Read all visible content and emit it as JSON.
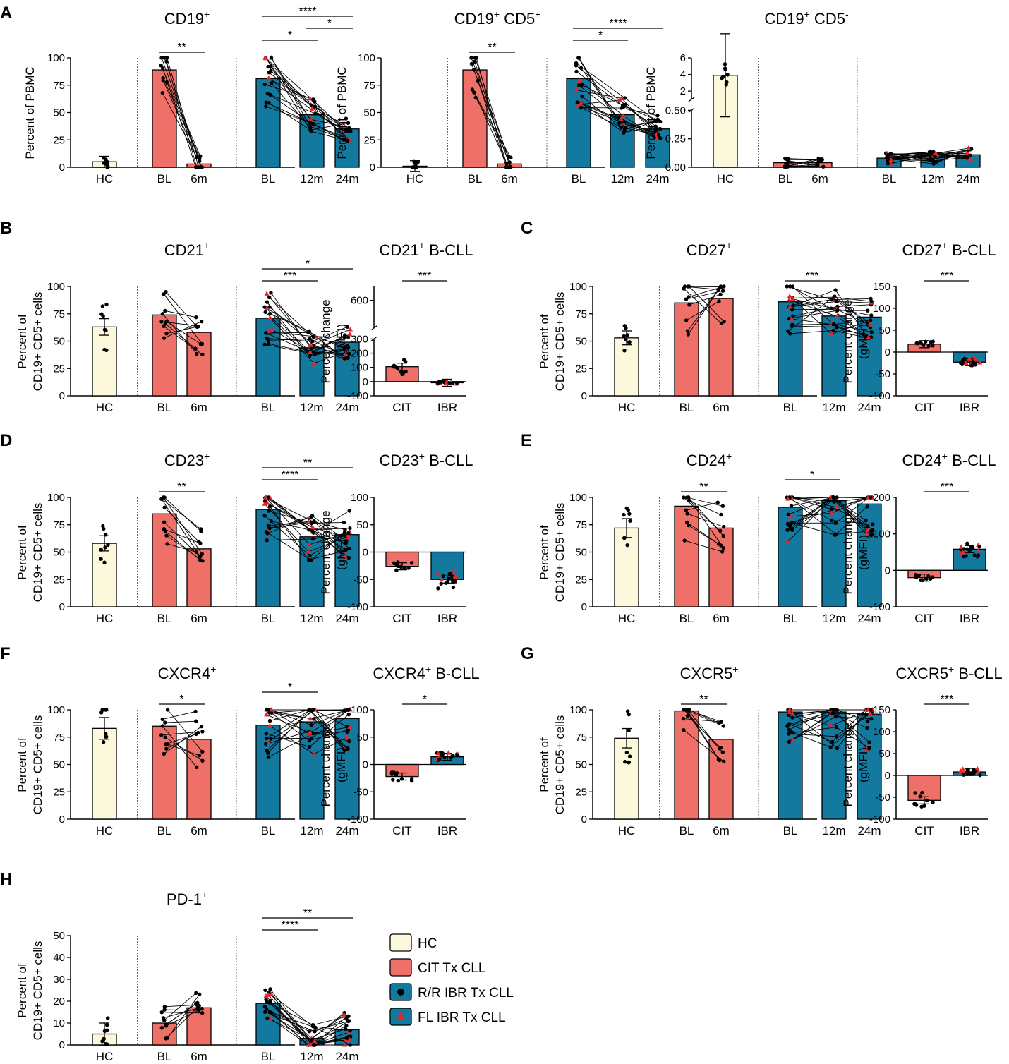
{
  "colors": {
    "hc": "#fbf8dc",
    "cit": "#ef6f69",
    "ibr": "#13799f",
    "fl_marker": "#e8262a",
    "rr_marker": "#000000"
  },
  "groups": {
    "hc": "HC",
    "bl": "BL",
    "m6": "6m",
    "m12": "12m",
    "m24": "24m",
    "cit": "CIT",
    "ibr": "IBR"
  },
  "legend": [
    {
      "label": "HC",
      "swatch": "hc",
      "marker": "none"
    },
    {
      "label": "CIT Tx CLL",
      "swatch": "cit",
      "marker": "none"
    },
    {
      "label": "R/R IBR Tx CLL",
      "swatch": "ibr",
      "marker": "circle"
    },
    {
      "label": "FL IBR Tx CLL",
      "swatch": "ibr",
      "marker": "triangle"
    }
  ],
  "chart_data": [
    {
      "panel": "A",
      "type": "bar",
      "title": "CD19",
      "title_sup": "+",
      "ylabel": [
        "Percent of PBMC"
      ],
      "ylim": [
        0,
        100
      ],
      "yticks": [
        0,
        25,
        50,
        75,
        100
      ],
      "categories": [
        "HC",
        "BL",
        "6m",
        "BL",
        "12m",
        "24m"
      ],
      "values": [
        5,
        89,
        3,
        81,
        48,
        35
      ],
      "series_groups": [
        "hc",
        "cit",
        "cit",
        "ibr",
        "ibr",
        "ibr"
      ],
      "significance": [
        {
          "from": 1,
          "to": 2,
          "label": "**"
        },
        {
          "from": 3,
          "to": 4,
          "label": "*"
        },
        {
          "from": 4,
          "to": 5,
          "label": "*"
        },
        {
          "from": 3,
          "to": 5,
          "label": "****"
        }
      ]
    },
    {
      "panel": "",
      "type": "bar",
      "title": "CD19",
      "title_sup": "+",
      "title2": " CD5",
      "title2_sup": "+",
      "ylabel": [
        "Percent of PBMC"
      ],
      "ylim": [
        0,
        100
      ],
      "yticks": [
        0,
        25,
        50,
        75,
        100
      ],
      "categories": [
        "HC",
        "BL",
        "6m",
        "BL",
        "12m",
        "24m"
      ],
      "values": [
        1,
        89,
        3,
        81,
        48,
        35
      ],
      "series_groups": [
        "hc",
        "cit",
        "cit",
        "ibr",
        "ibr",
        "ibr"
      ],
      "significance": [
        {
          "from": 1,
          "to": 2,
          "label": "**"
        },
        {
          "from": 3,
          "to": 4,
          "label": "*"
        },
        {
          "from": 3,
          "to": 5,
          "label": "****"
        }
      ]
    },
    {
      "panel": "",
      "type": "bar",
      "title": "CD19",
      "title_sup": "+",
      "title2": " CD5",
      "title2_sup": "-",
      "ylabel": [
        "Percent of PBMC"
      ],
      "broken_axis": true,
      "ylim_low": [
        0,
        0.5
      ],
      "yticks_low": [
        "0.00",
        "0.25",
        "0.50"
      ],
      "ylim_high": [
        1,
        6
      ],
      "yticks_high": [
        "2",
        "4",
        "6"
      ],
      "categories": [
        "HC",
        "BL",
        "6m",
        "BL",
        "12m",
        "24m"
      ],
      "values": [
        3.9,
        0.04,
        0.04,
        0.08,
        0.09,
        0.11
      ],
      "series_groups": [
        "hc",
        "cit",
        "cit",
        "ibr",
        "ibr",
        "ibr"
      ],
      "significance": []
    },
    {
      "panel": "B",
      "type": "bar",
      "title": "CD21",
      "title_sup": "+",
      "ylabel": [
        "Percent of",
        "CD19+ CD5+ cells"
      ],
      "ylim": [
        0,
        100
      ],
      "yticks": [
        0,
        25,
        50,
        75,
        100
      ],
      "categories": [
        "HC",
        "BL",
        "6m",
        "BL",
        "12m",
        "24m"
      ],
      "values": [
        63,
        74,
        58,
        71,
        44,
        49
      ],
      "series_groups": [
        "hc",
        "cit",
        "cit",
        "ibr",
        "ibr",
        "ibr"
      ],
      "significance": [
        {
          "from": 3,
          "to": 4,
          "label": "***"
        },
        {
          "from": 3,
          "to": 5,
          "label": "*"
        }
      ]
    },
    {
      "panel": "",
      "type": "bar",
      "title": "CD21",
      "title_sup": "+",
      "title2": " B-CLL",
      "ylabel": [
        "Percent change",
        "(gMFI)"
      ],
      "broken_axis": true,
      "ylim_low": [
        -100,
        300
      ],
      "yticks_low": [
        "-100",
        "0",
        "100",
        "200",
        "300"
      ],
      "ylim_high": [
        500,
        650
      ],
      "yticks_high": [
        "600"
      ],
      "categories": [
        "CIT",
        "IBR"
      ],
      "values": [
        105,
        -8
      ],
      "series_groups": [
        "cit",
        "ibr"
      ],
      "significance": [
        {
          "from": 0,
          "to": 1,
          "label": "***"
        }
      ]
    },
    {
      "panel": "C",
      "type": "bar",
      "title": "CD27",
      "title_sup": "+",
      "ylabel": [
        "Percent of",
        "CD19+ CD5+ cells"
      ],
      "ylim": [
        0,
        100
      ],
      "yticks": [
        0,
        25,
        50,
        75,
        100
      ],
      "categories": [
        "HC",
        "BL",
        "6m",
        "BL",
        "12m",
        "24m"
      ],
      "values": [
        53,
        85,
        89,
        86,
        73,
        72
      ],
      "series_groups": [
        "hc",
        "cit",
        "cit",
        "ibr",
        "ibr",
        "ibr"
      ],
      "significance": [
        {
          "from": 3,
          "to": 4,
          "label": "***"
        }
      ]
    },
    {
      "panel": "",
      "type": "bar",
      "title": "CD27",
      "title_sup": "+",
      "title2": " B-CLL",
      "ylabel": [
        "Percent change",
        "(gMFI)"
      ],
      "ylim": [
        -100,
        150
      ],
      "yticks": [
        -100,
        -50,
        0,
        50,
        100,
        150
      ],
      "categories": [
        "CIT",
        "IBR"
      ],
      "values": [
        18,
        -23
      ],
      "series_groups": [
        "cit",
        "ibr"
      ],
      "significance": [
        {
          "from": 0,
          "to": 1,
          "label": "***"
        }
      ]
    },
    {
      "panel": "D",
      "type": "bar",
      "title": "CD23",
      "title_sup": "+",
      "ylabel": [
        "Percent of",
        "CD19+ CD5+ cells"
      ],
      "ylim": [
        0,
        100
      ],
      "yticks": [
        0,
        25,
        50,
        75,
        100
      ],
      "categories": [
        "HC",
        "BL",
        "6m",
        "BL",
        "12m",
        "24m"
      ],
      "values": [
        58,
        85,
        53,
        89,
        64,
        66
      ],
      "series_groups": [
        "hc",
        "cit",
        "cit",
        "ibr",
        "ibr",
        "ibr"
      ],
      "significance": [
        {
          "from": 1,
          "to": 2,
          "label": "**"
        },
        {
          "from": 3,
          "to": 4,
          "label": "****"
        },
        {
          "from": 3,
          "to": 5,
          "label": "**"
        }
      ]
    },
    {
      "panel": "",
      "type": "bar",
      "title": "CD23",
      "title_sup": "+",
      "title2": " B-CLL",
      "ylabel": [
        "Percent change",
        "(gMFI)"
      ],
      "ylim": [
        -100,
        100
      ],
      "yticks": [
        -100,
        -50,
        0,
        50,
        100
      ],
      "categories": [
        "CIT",
        "IBR"
      ],
      "values": [
        -26,
        -50
      ],
      "series_groups": [
        "cit",
        "ibr"
      ],
      "significance": []
    },
    {
      "panel": "E",
      "type": "bar",
      "title": "CD24",
      "title_sup": "+",
      "ylabel": [
        "Percent of",
        "CD19+ CD5+ cells"
      ],
      "ylim": [
        0,
        100
      ],
      "yticks": [
        0,
        25,
        50,
        75,
        100
      ],
      "categories": [
        "HC",
        "BL",
        "6m",
        "BL",
        "12m",
        "24m"
      ],
      "values": [
        72,
        92,
        72,
        91,
        97,
        94
      ],
      "series_groups": [
        "hc",
        "cit",
        "cit",
        "ibr",
        "ibr",
        "ibr"
      ],
      "significance": [
        {
          "from": 1,
          "to": 2,
          "label": "**"
        },
        {
          "from": 3,
          "to": 4,
          "label": "*"
        }
      ]
    },
    {
      "panel": "",
      "type": "bar",
      "title": "CD24",
      "title_sup": "+",
      "title2": " B-CLL",
      "ylabel": [
        "Percent change",
        "(gMFI)"
      ],
      "ylim": [
        -100,
        200
      ],
      "yticks": [
        -100,
        0,
        100,
        200
      ],
      "categories": [
        "CIT",
        "IBR"
      ],
      "values": [
        -20,
        58
      ],
      "series_groups": [
        "cit",
        "ibr"
      ],
      "significance": [
        {
          "from": 0,
          "to": 1,
          "label": "***"
        }
      ]
    },
    {
      "panel": "F",
      "type": "bar",
      "title": "CXCR4",
      "title_sup": "+",
      "ylabel": [
        "Percent of",
        "CD19+ CD5+ cells"
      ],
      "ylim": [
        0,
        100
      ],
      "yticks": [
        0,
        25,
        50,
        75,
        100
      ],
      "categories": [
        "HC",
        "BL",
        "6m",
        "BL",
        "12m",
        "24m"
      ],
      "values": [
        83,
        85,
        73,
        86,
        89,
        92
      ],
      "series_groups": [
        "hc",
        "cit",
        "cit",
        "ibr",
        "ibr",
        "ibr"
      ],
      "significance": [
        {
          "from": 1,
          "to": 2,
          "label": "*"
        },
        {
          "from": 3,
          "to": 4,
          "label": "*"
        }
      ]
    },
    {
      "panel": "",
      "type": "bar",
      "title": "CXCR4",
      "title_sup": "+",
      "title2": " B-CLL",
      "ylabel": [
        "Percent change",
        "(gMFI)"
      ],
      "ylim": [
        -100,
        100
      ],
      "yticks": [
        -100,
        -50,
        0,
        50,
        100
      ],
      "categories": [
        "CIT",
        "IBR"
      ],
      "values": [
        -22,
        14
      ],
      "series_groups": [
        "cit",
        "ibr"
      ],
      "significance": [
        {
          "from": 0,
          "to": 1,
          "label": "*"
        }
      ]
    },
    {
      "panel": "G",
      "type": "bar",
      "title": "CXCR5",
      "title_sup": "+",
      "ylabel": [
        "Percent of",
        "CD19+ CD5+ cells"
      ],
      "ylim": [
        0,
        100
      ],
      "yticks": [
        0,
        25,
        50,
        75,
        100
      ],
      "categories": [
        "HC",
        "BL",
        "6m",
        "BL",
        "12m",
        "24m"
      ],
      "values": [
        74,
        99,
        73,
        98,
        98,
        96
      ],
      "series_groups": [
        "hc",
        "cit",
        "cit",
        "ibr",
        "ibr",
        "ibr"
      ],
      "significance": [
        {
          "from": 1,
          "to": 2,
          "label": "**"
        }
      ]
    },
    {
      "panel": "",
      "type": "bar",
      "title": "CXCR5",
      "title_sup": "+",
      "title2": " B-CLL",
      "ylabel": [
        "Percent change",
        "(gMFI)"
      ],
      "ylim": [
        -100,
        150
      ],
      "yticks": [
        -100,
        -50,
        0,
        50,
        100,
        150
      ],
      "categories": [
        "CIT",
        "IBR"
      ],
      "values": [
        -57,
        8
      ],
      "series_groups": [
        "cit",
        "ibr"
      ],
      "significance": [
        {
          "from": 0,
          "to": 1,
          "label": "***"
        }
      ]
    },
    {
      "panel": "H",
      "type": "bar",
      "title": "PD-1",
      "title_sup": "+",
      "ylabel": [
        "Percent of",
        "CD19+ CD5+ cells"
      ],
      "ylim": [
        0,
        50
      ],
      "yticks": [
        0,
        10,
        20,
        30,
        40,
        50
      ],
      "categories": [
        "HC",
        "BL",
        "6m",
        "BL",
        "12m",
        "24m"
      ],
      "values": [
        5,
        10,
        17,
        19,
        3,
        7
      ],
      "series_groups": [
        "hc",
        "cit",
        "cit",
        "ibr",
        "ibr",
        "ibr"
      ],
      "significance": [
        {
          "from": 3,
          "to": 4,
          "label": "****"
        },
        {
          "from": 3,
          "to": 5,
          "label": "**"
        }
      ]
    }
  ]
}
